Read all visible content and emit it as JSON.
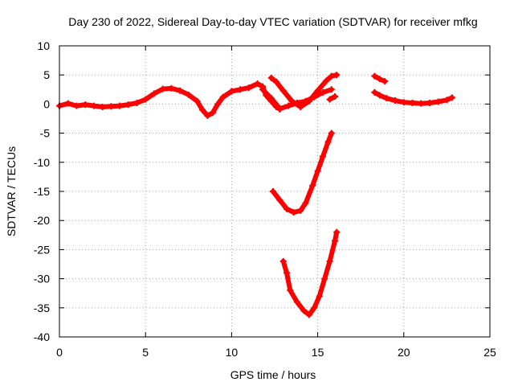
{
  "chart_data": {
    "type": "scatter",
    "title": "Day 230 of 2022, Sidereal Day-to-day VTEC variation (SDTVAR) for receiver mfkg",
    "xlabel": "GPS time / hours",
    "ylabel": "SDTVAR / TECUs",
    "xlim": [
      0,
      25
    ],
    "ylim": [
      -40,
      10
    ],
    "xticks": [
      0,
      5,
      10,
      15,
      20,
      25
    ],
    "yticks": [
      10,
      5,
      0,
      -5,
      -10,
      -15,
      -20,
      -25,
      -30,
      -35,
      -40
    ],
    "grid": true,
    "legend": "none",
    "series_color": "#ff0000",
    "series": [
      {
        "name": "main-track",
        "points": [
          [
            0,
            -0.3
          ],
          [
            0.5,
            0.1
          ],
          [
            1,
            -0.3
          ],
          [
            1.5,
            -0.1
          ],
          [
            2,
            -0.3
          ],
          [
            2.5,
            -0.5
          ],
          [
            3,
            -0.4
          ],
          [
            3.5,
            -0.3
          ],
          [
            4,
            -0.1
          ],
          [
            4.5,
            0.2
          ],
          [
            5,
            0.8
          ],
          [
            5.5,
            1.8
          ],
          [
            6,
            2.6
          ],
          [
            6.5,
            2.7
          ],
          [
            7,
            2.3
          ],
          [
            7.5,
            1.6
          ],
          [
            8,
            0.5
          ],
          [
            8.3,
            -1.0
          ],
          [
            8.6,
            -2.0
          ],
          [
            8.9,
            -1.5
          ],
          [
            9.2,
            0
          ],
          [
            9.5,
            1.2
          ],
          [
            10,
            2.2
          ],
          [
            10.5,
            2.5
          ],
          [
            11,
            2.8
          ],
          [
            11.5,
            3.5
          ],
          [
            11.8,
            3.0
          ],
          [
            12,
            1.5
          ],
          [
            12.3,
            0.5
          ],
          [
            12.6,
            -0.5
          ],
          [
            12.8,
            -0.9
          ]
        ]
      },
      {
        "name": "arc-upper",
        "points": [
          [
            12.3,
            4.5
          ],
          [
            12.6,
            3.8
          ],
          [
            13,
            2.3
          ],
          [
            13.5,
            0.5
          ],
          [
            14,
            -0.5
          ],
          [
            14.5,
            0.5
          ],
          [
            15,
            2.3
          ],
          [
            15.5,
            4.0
          ],
          [
            15.8,
            4.8
          ],
          [
            16.1,
            5.0
          ]
        ]
      },
      {
        "name": "arc-lower",
        "points": [
          [
            11.8,
            2.5
          ],
          [
            12.3,
            1.0
          ],
          [
            12.8,
            -0.8
          ],
          [
            13.3,
            -0.3
          ],
          [
            13.8,
            0.2
          ],
          [
            14.3,
            0.5
          ],
          [
            14.8,
            1.2
          ],
          [
            15.3,
            2.0
          ],
          [
            15.8,
            2.5
          ]
        ]
      },
      {
        "name": "short-mark-16",
        "points": [
          [
            15.7,
            0.8
          ],
          [
            16.0,
            1.3
          ]
        ]
      },
      {
        "name": "segment-18",
        "points": [
          [
            18.3,
            4.8
          ],
          [
            18.6,
            4.3
          ],
          [
            18.9,
            3.9
          ]
        ]
      },
      {
        "name": "late-track",
        "points": [
          [
            18.3,
            2.0
          ],
          [
            18.6,
            1.5
          ],
          [
            19,
            1.0
          ],
          [
            19.5,
            0.6
          ],
          [
            20,
            0.3
          ],
          [
            20.5,
            0.2
          ],
          [
            21,
            0.1
          ],
          [
            21.5,
            0.2
          ],
          [
            22,
            0.4
          ],
          [
            22.5,
            0.7
          ],
          [
            22.8,
            1.1
          ]
        ]
      },
      {
        "name": "valley-mid",
        "points": [
          [
            12.4,
            -15.0
          ],
          [
            12.8,
            -16.5
          ],
          [
            13.2,
            -18.0
          ],
          [
            13.6,
            -18.6
          ],
          [
            14.0,
            -18.3
          ],
          [
            14.3,
            -17.0
          ],
          [
            14.7,
            -14.0
          ],
          [
            15.0,
            -11.5
          ],
          [
            15.3,
            -9.0
          ],
          [
            15.6,
            -6.5
          ],
          [
            15.8,
            -5.0
          ]
        ]
      },
      {
        "name": "valley-deep",
        "points": [
          [
            13.0,
            -27.0
          ],
          [
            13.2,
            -29.0
          ],
          [
            13.4,
            -32.0
          ],
          [
            13.8,
            -34.0
          ],
          [
            14.2,
            -35.5
          ],
          [
            14.5,
            -36.2
          ],
          [
            14.8,
            -35.0
          ],
          [
            15.1,
            -33.0
          ],
          [
            15.4,
            -30.0
          ],
          [
            15.7,
            -27.0
          ],
          [
            16.0,
            -23.5
          ],
          [
            16.1,
            -22.0
          ]
        ]
      }
    ]
  }
}
